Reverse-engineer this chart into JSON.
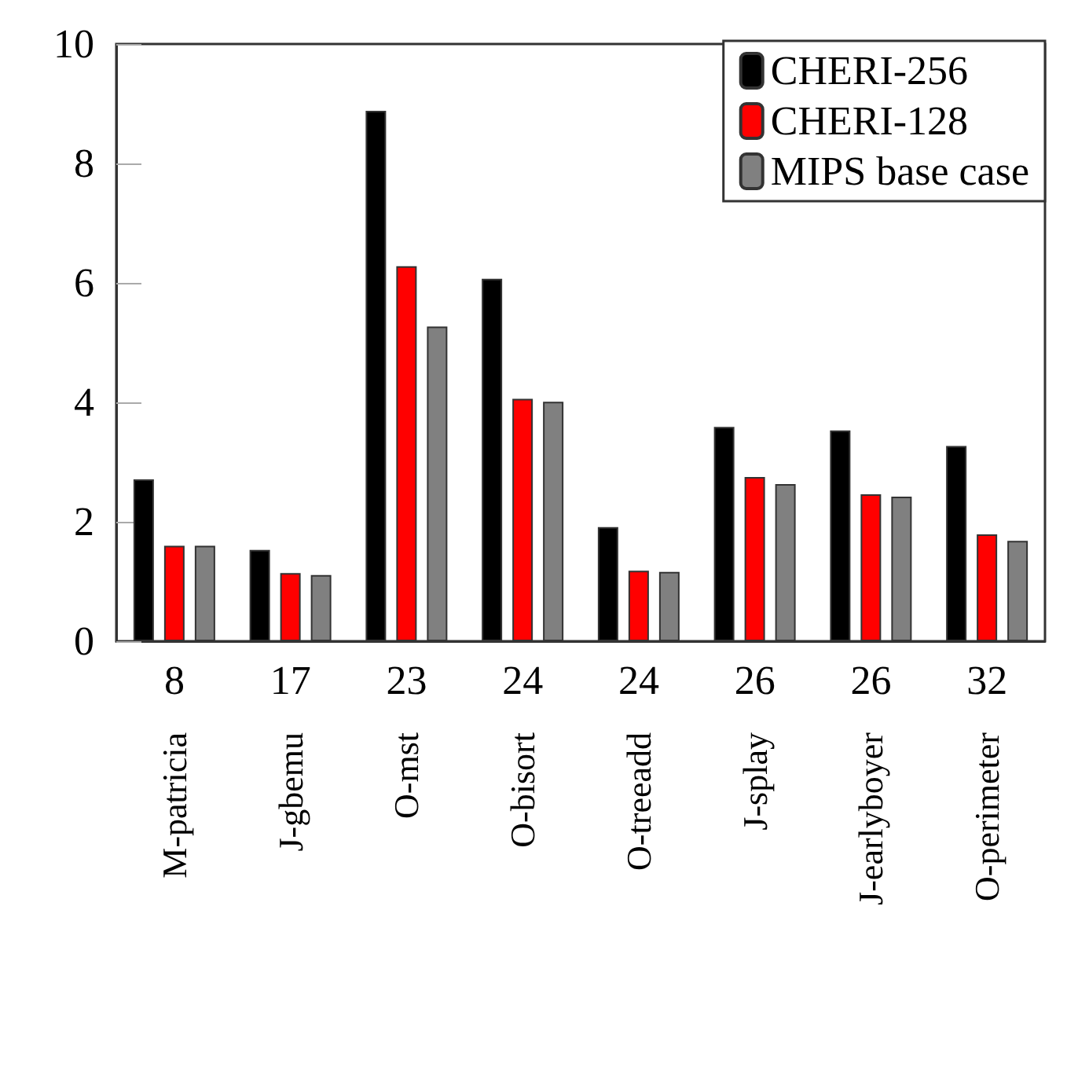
{
  "chart_data": {
    "type": "bar",
    "categories": [
      "8\nM-patricia",
      "17\nJ-gbemu",
      "23\nO-mst",
      "24\nO-bisort",
      "24\nO-treeadd",
      "26\nJ-splay",
      "26\nJ-earlyboyer",
      "32\nO-perimeter"
    ],
    "series": [
      {
        "name": "CHERI-256",
        "color": "#000000",
        "values": [
          2.71,
          1.53,
          8.88,
          6.07,
          1.91,
          3.59,
          3.53,
          3.27
        ]
      },
      {
        "name": "CHERI-128",
        "color": "#ff0000",
        "values": [
          1.6,
          1.14,
          6.28,
          4.06,
          1.18,
          2.75,
          2.46,
          1.79
        ]
      },
      {
        "name": "MIPS base case",
        "color": "#808080",
        "values": [
          1.6,
          1.11,
          5.27,
          4.01,
          1.16,
          2.63,
          2.42,
          1.68
        ]
      }
    ],
    "ylim": [
      0,
      10
    ],
    "yticks": [
      0,
      2,
      4,
      6,
      8,
      10
    ],
    "grid": false,
    "legend": "top right"
  }
}
